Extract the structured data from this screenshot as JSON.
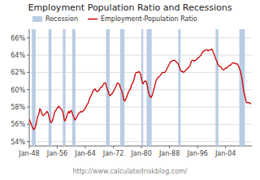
{
  "chart_data": {
    "type": "line",
    "title": "Employment Population Ratio and Recessions",
    "subtitle": "http://www.calculatedriskblog.com/",
    "x": [
      1948.0,
      1948.25,
      1948.5,
      1948.75,
      1949.0,
      1949.25,
      1949.5,
      1949.75,
      1950.0,
      1950.25,
      1950.5,
      1950.75,
      1951.0,
      1951.25,
      1951.5,
      1951.75,
      1952.0,
      1952.25,
      1952.5,
      1952.75,
      1953.0,
      1953.25,
      1953.5,
      1953.75,
      1954.0,
      1954.25,
      1954.5,
      1954.75,
      1955.0,
      1955.25,
      1955.5,
      1955.75,
      1956.0,
      1956.25,
      1956.5,
      1956.75,
      1957.0,
      1957.25,
      1957.5,
      1957.75,
      1958.0,
      1958.25,
      1958.5,
      1958.75,
      1959.0,
      1959.25,
      1959.5,
      1959.75,
      1960.0,
      1960.25,
      1960.5,
      1960.75,
      1961.0,
      1961.25,
      1961.5,
      1961.75,
      1962.0,
      1962.25,
      1962.5,
      1962.75,
      1963.0,
      1963.25,
      1963.5,
      1963.75,
      1964.0,
      1964.25,
      1964.5,
      1964.75,
      1965.0,
      1965.25,
      1965.5,
      1965.75,
      1966.0,
      1966.25,
      1966.5,
      1966.75,
      1967.0,
      1967.25,
      1967.5,
      1967.75,
      1968.0,
      1968.25,
      1968.5,
      1968.75,
      1969.0,
      1969.25,
      1969.5,
      1969.75,
      1970.0,
      1970.25,
      1970.5,
      1970.75,
      1971.0,
      1971.25,
      1971.5,
      1971.75,
      1972.0,
      1972.25,
      1972.5,
      1972.75,
      1973.0,
      1973.25,
      1973.5,
      1973.75,
      1974.0,
      1974.25,
      1974.5,
      1974.75,
      1975.0,
      1975.25,
      1975.5,
      1975.75,
      1976.0,
      1976.25,
      1976.5,
      1976.75,
      1977.0,
      1977.25,
      1977.5,
      1977.75,
      1978.0,
      1978.25,
      1978.5,
      1978.75,
      1979.0,
      1979.25,
      1979.5,
      1979.75,
      1980.0,
      1980.25,
      1980.5,
      1980.75,
      1981.0,
      1981.25,
      1981.5,
      1981.75,
      1982.0,
      1982.25,
      1982.5,
      1982.75,
      1983.0,
      1983.25,
      1983.5,
      1983.75,
      1984.0,
      1984.25,
      1984.5,
      1984.75,
      1985.0,
      1985.25,
      1985.5,
      1985.75,
      1986.0,
      1986.25,
      1986.5,
      1986.75,
      1987.0,
      1987.25,
      1987.5,
      1987.75,
      1988.0,
      1988.25,
      1988.5,
      1988.75,
      1989.0,
      1989.25,
      1989.5,
      1989.75,
      1990.0,
      1990.25,
      1990.5,
      1990.75,
      1991.0,
      1991.25,
      1991.5,
      1991.75,
      1992.0,
      1992.25,
      1992.5,
      1992.75,
      1993.0,
      1993.25,
      1993.5,
      1993.75,
      1994.0,
      1994.25,
      1994.5,
      1994.75,
      1995.0,
      1995.25,
      1995.5,
      1995.75,
      1996.0,
      1996.25,
      1996.5,
      1996.75,
      1997.0,
      1997.25,
      1997.5,
      1997.75,
      1998.0,
      1998.25,
      1998.5,
      1998.75,
      1999.0,
      1999.25,
      1999.5,
      1999.75,
      2000.0,
      2000.25,
      2000.5,
      2000.75,
      2001.0,
      2001.25,
      2001.5,
      2001.75,
      2002.0,
      2002.25,
      2002.5,
      2002.75,
      2003.0,
      2003.25,
      2003.5,
      2003.75,
      2004.0,
      2004.25,
      2004.5,
      2004.75,
      2005.0,
      2005.25,
      2005.5,
      2005.75,
      2006.0,
      2006.25,
      2006.5,
      2006.75,
      2007.0,
      2007.25,
      2007.5,
      2007.75,
      2008.0,
      2008.25,
      2008.5,
      2008.75,
      2009.0,
      2009.25,
      2009.5,
      2009.75,
      2010.0,
      2010.25,
      2010.5,
      2010.75,
      2011.0,
      2011.25
    ],
    "series": [
      {
        "name": "Employment-Population Ratio",
        "color": "#cc0000",
        "values": [
          56.6,
          56.3,
          56.1,
          55.8,
          55.6,
          55.4,
          55.5,
          55.7,
          56.1,
          56.6,
          57.0,
          57.2,
          57.8,
          57.7,
          57.3,
          57.1,
          57.0,
          57.1,
          57.2,
          57.3,
          57.5,
          57.4,
          57.1,
          56.7,
          56.3,
          56.2,
          56.3,
          56.6,
          57.0,
          57.4,
          57.6,
          57.7,
          57.9,
          58.0,
          58.1,
          57.9,
          57.8,
          57.7,
          57.5,
          57.1,
          56.5,
          56.4,
          56.7,
          57.0,
          57.3,
          57.5,
          57.3,
          57.5,
          57.6,
          57.3,
          57.0,
          56.8,
          56.5,
          56.6,
          56.8,
          57.0,
          57.2,
          57.3,
          57.4,
          57.5,
          57.4,
          57.5,
          57.6,
          57.7,
          57.9,
          58.1,
          58.3,
          58.4,
          58.7,
          59.0,
          59.2,
          59.4,
          59.7,
          59.9,
          60.0,
          60.1,
          59.9,
          59.8,
          59.8,
          59.9,
          60.0,
          60.2,
          60.3,
          60.3,
          60.5,
          60.7,
          60.8,
          60.8,
          60.4,
          60.1,
          59.8,
          59.5,
          59.3,
          59.4,
          59.5,
          59.6,
          59.8,
          60.0,
          60.2,
          60.4,
          60.7,
          60.8,
          60.7,
          60.6,
          60.2,
          60.0,
          59.7,
          59.3,
          58.8,
          58.7,
          58.9,
          59.1,
          59.4,
          59.7,
          59.9,
          60.0,
          60.3,
          60.6,
          60.8,
          61.0,
          61.4,
          61.8,
          62.0,
          62.0,
          62.0,
          62.1,
          62.0,
          61.8,
          61.3,
          60.8,
          60.7,
          60.9,
          61.0,
          61.0,
          60.8,
          60.3,
          59.7,
          59.4,
          59.2,
          59.1,
          59.3,
          59.6,
          60.0,
          60.3,
          60.8,
          61.1,
          61.3,
          61.4,
          61.5,
          61.6,
          61.7,
          61.9,
          62.0,
          62.0,
          62.0,
          62.0,
          62.2,
          62.4,
          62.6,
          62.8,
          63.0,
          63.2,
          63.3,
          63.3,
          63.4,
          63.4,
          63.4,
          63.3,
          63.2,
          63.1,
          63.0,
          62.7,
          62.4,
          62.2,
          62.1,
          62.1,
          62.0,
          62.1,
          62.2,
          62.3,
          62.4,
          62.5,
          62.6,
          62.7,
          63.0,
          63.3,
          63.4,
          63.4,
          63.3,
          63.4,
          63.4,
          63.5,
          63.6,
          63.7,
          63.8,
          63.9,
          64.0,
          64.2,
          64.4,
          64.5,
          64.5,
          64.6,
          64.6,
          64.6,
          64.5,
          64.6,
          64.6,
          64.6,
          64.7,
          64.6,
          64.3,
          64.1,
          63.8,
          63.5,
          63.3,
          63.0,
          62.8,
          62.7,
          62.7,
          62.6,
          62.4,
          62.3,
          62.3,
          62.4,
          62.5,
          62.5,
          62.6,
          62.7,
          62.8,
          62.8,
          62.9,
          63.0,
          63.1,
          63.1,
          63.1,
          63.0,
          63.0,
          63.0,
          62.9,
          62.7,
          62.4,
          62.1,
          61.7,
          61.1,
          60.3,
          59.7,
          59.3,
          58.8,
          58.5,
          58.5,
          58.5,
          58.5,
          58.4,
          58.4
        ]
      }
    ],
    "bands": {
      "name": "Recession",
      "color": "#b8cce4",
      "ranges": [
        [
          1948.75,
          1949.83
        ],
        [
          1953.5,
          1954.33
        ],
        [
          1957.58,
          1958.33
        ],
        [
          1960.25,
          1961.17
        ],
        [
          1969.92,
          1970.92
        ],
        [
          1973.92,
          1975.17
        ],
        [
          1980.0,
          1980.5
        ],
        [
          1981.5,
          1982.92
        ],
        [
          1990.5,
          1991.17
        ],
        [
          2001.17,
          2001.92
        ],
        [
          2007.92,
          2009.5
        ]
      ]
    },
    "xlim": [
      1948,
      2011.5
    ],
    "xticks": [
      {
        "value": 1948,
        "label": "Jan-48"
      },
      {
        "value": 1956,
        "label": "Jan-56"
      },
      {
        "value": 1964,
        "label": "Jan-64"
      },
      {
        "value": 1972,
        "label": "Jan-72"
      },
      {
        "value": 1980,
        "label": "Jan-80"
      },
      {
        "value": 1988,
        "label": "Jan-88"
      },
      {
        "value": 1996,
        "label": "Jan-96"
      },
      {
        "value": 2004,
        "label": "Jan-04"
      }
    ],
    "ylim": [
      53.5,
      67.0
    ],
    "yticks": [
      {
        "value": 54,
        "label": "54%"
      },
      {
        "value": 56,
        "label": "56%"
      },
      {
        "value": 58,
        "label": "58%"
      },
      {
        "value": 60,
        "label": "60%"
      },
      {
        "value": 62,
        "label": "62%"
      },
      {
        "value": 64,
        "label": "64%"
      },
      {
        "value": 66,
        "label": "66%"
      }
    ],
    "grid": true,
    "legend": "upper left"
  }
}
